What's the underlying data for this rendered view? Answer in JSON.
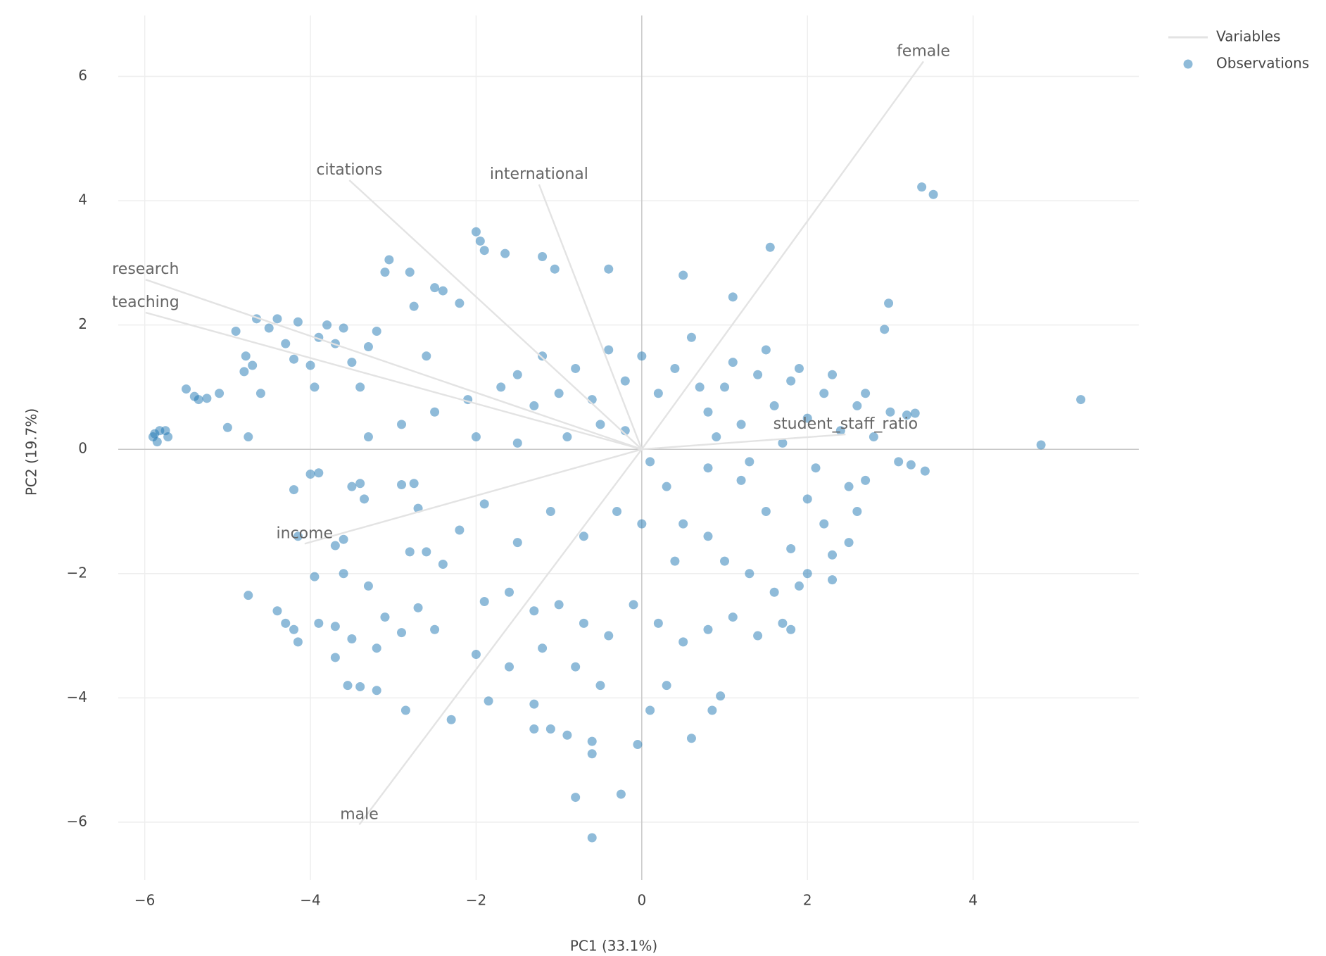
{
  "chart_data": {
    "type": "scatter",
    "x_label": "PC1 (33.1%)",
    "y_label": "PC2 (19.7%)",
    "xlim": [
      -6.32,
      6.0
    ],
    "ylim": [
      -6.93,
      6.98
    ],
    "xticks": [
      {
        "value": -6,
        "label": "−6"
      },
      {
        "value": -4,
        "label": "−4"
      },
      {
        "value": -2,
        "label": "−2"
      },
      0,
      2,
      4
    ],
    "yticks": [
      {
        "value": -6,
        "label": "−6"
      },
      {
        "value": -4,
        "label": "−4"
      },
      {
        "value": -2,
        "label": "−2"
      },
      0,
      2,
      4,
      6
    ],
    "grid": true,
    "legend": "top-right",
    "series": [
      {
        "name": "Variables",
        "mode": "lines",
        "color": "#e3e3e3",
        "labels": [
          "female",
          "citations",
          "international",
          "research",
          "teaching",
          "student_staff_ratio",
          "income",
          "male"
        ],
        "x": [
          3.4,
          -3.53,
          -1.24,
          -5.99,
          -5.99,
          2.46,
          -4.07,
          -3.41
        ],
        "y": [
          6.24,
          4.33,
          4.26,
          2.73,
          2.2,
          0.24,
          -1.52,
          -6.04
        ]
      },
      {
        "name": "Observations",
        "mode": "markers",
        "color": "#1f77b4",
        "x": [
          3.38,
          3.52,
          5.3,
          4.82,
          -0.6,
          -0.8,
          -0.25,
          -5.9,
          -5.88,
          -5.85,
          -5.75,
          -5.72,
          -5.82,
          -5.5,
          -5.4,
          -5.35,
          -5.25,
          -5.1,
          -5.0,
          -4.9,
          -4.8,
          -4.78,
          -4.75,
          -4.7,
          -4.65,
          -4.6,
          -4.5,
          -4.4,
          -4.3,
          -4.2,
          -4.15,
          -4.0,
          -3.95,
          -3.9,
          -3.8,
          -3.7,
          -3.6,
          -3.5,
          -3.4,
          -3.3,
          -3.2,
          -3.1,
          -3.05,
          -2.8,
          -2.75,
          -2.6,
          -2.5,
          -2.4,
          -2.2,
          -2.0,
          -1.95,
          -1.9,
          -1.65,
          -1.2,
          -1.05,
          -0.4,
          0.5,
          1.55,
          2.98,
          2.93,
          1.1,
          -1.5,
          -1.2,
          -1.0,
          -0.8,
          -0.6,
          -0.4,
          -0.2,
          0,
          0.2,
          0.4,
          0.6,
          0.8,
          1.0,
          1.2,
          1.4,
          1.6,
          1.8,
          2.0,
          2.2,
          2.4,
          2.6,
          2.8,
          3.0,
          3.2,
          3.3,
          3.1,
          3.25,
          3.42,
          2.5,
          2.2,
          2.0,
          1.8,
          1.5,
          1.2,
          1.0,
          0.8,
          0.5,
          0.3,
          0.1,
          -0.2,
          0.9,
          1.3,
          1.7,
          2.1,
          0.7,
          1.1,
          1.5,
          1.9,
          2.3,
          2.7,
          -0.5,
          -0.9,
          -1.3,
          -1.7,
          -2.1,
          -2.5,
          -2.9,
          -3.3,
          -2.0,
          -1.5,
          -4.2,
          -4.0,
          -3.9,
          -3.5,
          -3.4,
          -3.35,
          -2.9,
          -2.75,
          -2.7,
          -1.9,
          -4.15,
          -3.6,
          -3.7,
          -3.95,
          -3.6,
          -3.3,
          -4.75,
          -4.4,
          -4.3,
          -4.2,
          -4.15,
          -3.9,
          -3.7,
          -3.5,
          -3.2,
          -3.1,
          -2.9,
          -2.7,
          -2.5,
          -2.85,
          -2.3,
          -3.55,
          -3.4,
          -3.2,
          -3.7,
          -2.8,
          -2.6,
          -2.4,
          -2.2,
          -1.9,
          -1.6,
          -1.3,
          -1.0,
          -0.7,
          -0.4,
          -0.1,
          0.2,
          0.5,
          0.8,
          1.1,
          1.4,
          1.7,
          -1.85,
          -1.3,
          -1.1,
          -0.9,
          -0.6,
          -0.6,
          -0.05,
          0.1,
          0.6,
          0.85,
          0.95,
          -1.3,
          -0.5,
          0.3,
          -1.2,
          -0.8,
          -2.0,
          -1.6,
          0.0,
          0.4,
          -0.3,
          -0.7,
          -1.1,
          -1.5,
          0.8,
          1.3,
          1.6,
          2.0,
          2.3,
          2.5,
          2.6,
          2.7,
          2.3,
          1.9,
          1.8
        ],
        "y": [
          4.22,
          4.1,
          0.8,
          0.07,
          -6.25,
          -5.6,
          -5.55,
          0.2,
          0.25,
          0.12,
          0.3,
          0.2,
          0.3,
          0.97,
          0.85,
          0.8,
          0.82,
          0.9,
          0.35,
          1.9,
          1.25,
          1.5,
          0.2,
          1.35,
          2.1,
          0.9,
          1.95,
          2.1,
          1.7,
          1.45,
          2.05,
          1.35,
          1.0,
          1.8,
          2.0,
          1.7,
          1.95,
          1.4,
          1.0,
          1.65,
          1.9,
          2.85,
          3.05,
          2.85,
          2.3,
          1.5,
          2.6,
          2.55,
          2.35,
          3.5,
          3.35,
          3.2,
          3.15,
          3.1,
          2.9,
          2.9,
          2.8,
          3.25,
          2.35,
          1.93,
          2.45,
          1.2,
          1.5,
          0.9,
          1.3,
          0.8,
          1.6,
          1.1,
          1.5,
          0.9,
          1.3,
          1.8,
          0.6,
          1.0,
          0.4,
          1.2,
          0.7,
          1.1,
          0.5,
          0.9,
          0.3,
          0.7,
          0.2,
          0.6,
          0.55,
          0.58,
          -0.2,
          -0.25,
          -0.35,
          -0.6,
          -1.2,
          -0.8,
          -1.6,
          -1.0,
          -0.5,
          -1.8,
          -0.3,
          -1.2,
          -0.6,
          -0.2,
          0.3,
          0.2,
          -0.2,
          0.1,
          -0.3,
          1.0,
          1.4,
          1.6,
          1.3,
          1.2,
          0.9,
          0.4,
          0.2,
          0.7,
          1.0,
          0.8,
          0.6,
          0.4,
          0.2,
          0.2,
          0.1,
          -0.65,
          -0.4,
          -0.38,
          -0.6,
          -0.55,
          -0.8,
          -0.57,
          -0.55,
          -0.95,
          -0.88,
          -1.4,
          -1.45,
          -1.55,
          -2.05,
          -2.0,
          -2.2,
          -2.35,
          -2.6,
          -2.8,
          -2.9,
          -3.1,
          -2.8,
          -2.85,
          -3.05,
          -3.2,
          -2.7,
          -2.95,
          -2.55,
          -2.9,
          -4.2,
          -4.35,
          -3.8,
          -3.82,
          -3.88,
          -3.35,
          -1.65,
          -1.65,
          -1.85,
          -1.3,
          -2.45,
          -2.3,
          -2.6,
          -2.5,
          -2.8,
          -3.0,
          -2.5,
          -2.8,
          -3.1,
          -2.9,
          -2.7,
          -3.0,
          -2.8,
          -4.05,
          -4.1,
          -4.5,
          -4.6,
          -4.7,
          -4.9,
          -4.75,
          -4.2,
          -4.65,
          -4.2,
          -3.97,
          -4.5,
          -3.8,
          -3.8,
          -3.2,
          -3.5,
          -3.3,
          -3.5,
          -1.2,
          -1.8,
          -1.0,
          -1.4,
          -1.0,
          -1.5,
          -1.4,
          -2.0,
          -2.3,
          -2.0,
          -1.7,
          -1.5,
          -1.0,
          -0.5,
          -2.1,
          -2.2,
          -2.9
        ]
      }
    ]
  }
}
